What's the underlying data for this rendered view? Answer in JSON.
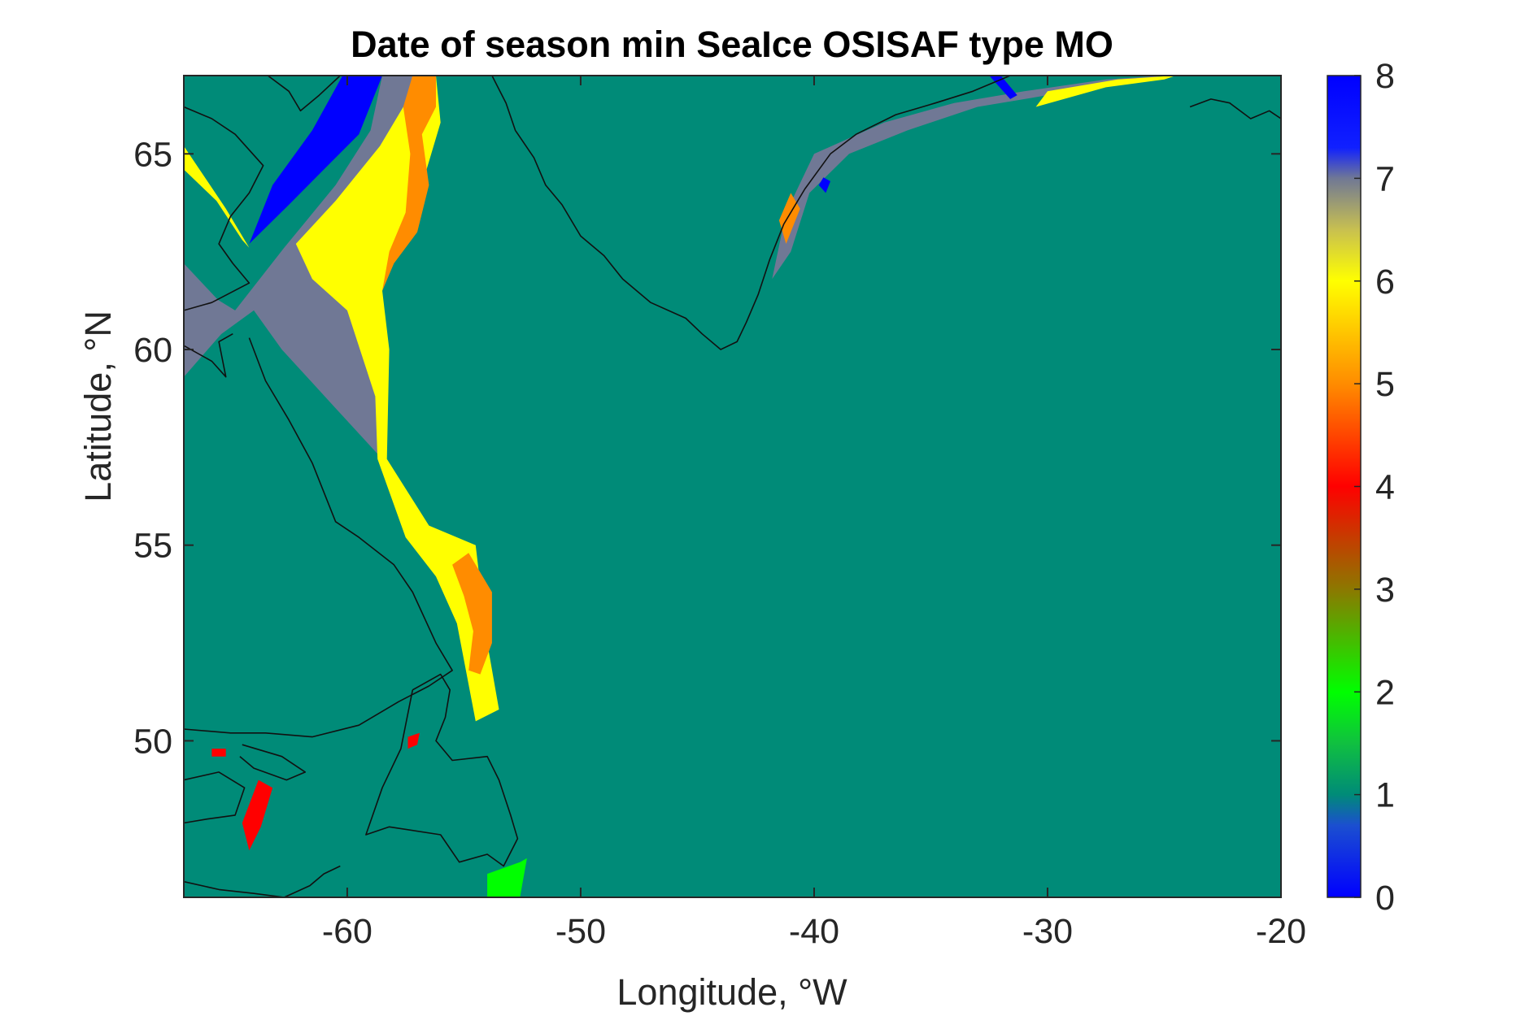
{
  "chart_data": {
    "type": "heatmap",
    "title": "Date of season min SeaIce OSISAF type MO",
    "xlabel": "Longitude, °W",
    "ylabel": "Latitude, °N",
    "xlim": [
      -67,
      -20
    ],
    "ylim": [
      46,
      67
    ],
    "xticks": [
      -60,
      -50,
      -40,
      -30,
      -20
    ],
    "xtick_labels": [
      "-60",
      "-50",
      "-40",
      "-30",
      "-20"
    ],
    "yticks": [
      50,
      55,
      60,
      65
    ],
    "ytick_labels": [
      "50",
      "55",
      "60",
      "65"
    ],
    "colorbar": {
      "min": 0,
      "max": 8,
      "ticks": [
        0,
        1,
        2,
        3,
        4,
        5,
        6,
        7,
        8
      ],
      "tick_labels": [
        "0",
        "1",
        "2",
        "3",
        "4",
        "5",
        "6",
        "7",
        "8"
      ],
      "stops": [
        {
          "value": 0,
          "color": "#0000ff"
        },
        {
          "value": 0.7,
          "color": "#1b4fd0"
        },
        {
          "value": 1.0,
          "color": "#008b78"
        },
        {
          "value": 1.5,
          "color": "#10c040"
        },
        {
          "value": 2.0,
          "color": "#00ff00"
        },
        {
          "value": 3.0,
          "color": "#8c7800"
        },
        {
          "value": 4.0,
          "color": "#ff0000"
        },
        {
          "value": 5.0,
          "color": "#ff8c00"
        },
        {
          "value": 6.0,
          "color": "#ffff00"
        },
        {
          "value": 6.5,
          "color": "#c8c050"
        },
        {
          "value": 7.0,
          "color": "#707895"
        },
        {
          "value": 7.3,
          "color": "#1020ff"
        },
        {
          "value": 8.0,
          "color": "#0000ff"
        }
      ]
    },
    "background_value": 1,
    "regions": [
      {
        "name": "labrador-sea-grey",
        "value": 7,
        "points": [
          [
            -67,
            61.8
          ],
          [
            -64.8,
            61
          ],
          [
            -62.7,
            62.6
          ],
          [
            -60.5,
            64.2
          ],
          [
            -59,
            65.6
          ],
          [
            -58.5,
            67
          ],
          [
            -56.5,
            67
          ],
          [
            -58,
            65
          ],
          [
            -60,
            61.5
          ],
          [
            -58.8,
            58.8
          ],
          [
            -58.5,
            57.2
          ],
          [
            -60.5,
            58.5
          ],
          [
            -62.8,
            60
          ],
          [
            -64,
            61
          ],
          [
            -67,
            59.7
          ]
        ]
      },
      {
        "name": "baffin-bay-blue",
        "value": 8,
        "points": [
          [
            -64.2,
            62.7
          ],
          [
            -63.2,
            64.2
          ],
          [
            -61.5,
            65.6
          ],
          [
            -60.2,
            67
          ],
          [
            -58.5,
            67
          ],
          [
            -59.5,
            65.5
          ],
          [
            -61,
            64.6
          ],
          [
            -62.5,
            63.7
          ]
        ]
      },
      {
        "name": "labrador-shelf-yellow",
        "value": 6,
        "points": [
          [
            -62.2,
            62.7
          ],
          [
            -60.5,
            63.8
          ],
          [
            -58.6,
            65.2
          ],
          [
            -57.5,
            66.3
          ],
          [
            -57.2,
            67
          ],
          [
            -56.2,
            67
          ],
          [
            -56,
            65.8
          ],
          [
            -57,
            63.8
          ],
          [
            -58.5,
            61.5
          ],
          [
            -58.2,
            60
          ],
          [
            -58.3,
            57.2
          ],
          [
            -56.5,
            55.5
          ],
          [
            -54.5,
            55
          ],
          [
            -54,
            52.5
          ],
          [
            -53.5,
            50.8
          ],
          [
            -54.5,
            50.5
          ],
          [
            -55.3,
            53
          ],
          [
            -56.2,
            54.2
          ],
          [
            -57.5,
            55.2
          ],
          [
            -58.7,
            57.2
          ],
          [
            -58.8,
            58.8
          ],
          [
            -60,
            61
          ],
          [
            -61.5,
            61.8
          ]
        ]
      },
      {
        "name": "labrador-shelf-orange-north",
        "value": 5,
        "points": [
          [
            -57.2,
            67
          ],
          [
            -56.2,
            67
          ],
          [
            -56.2,
            66.2
          ],
          [
            -56.8,
            65.5
          ],
          [
            -56.5,
            64.2
          ],
          [
            -57,
            63
          ],
          [
            -58,
            62.2
          ],
          [
            -58.5,
            61.5
          ],
          [
            -58.2,
            62.5
          ],
          [
            -57.5,
            63.5
          ],
          [
            -57.3,
            65
          ],
          [
            -57.6,
            66.2
          ]
        ]
      },
      {
        "name": "labrador-shelf-orange-south",
        "value": 5,
        "points": [
          [
            -54.8,
            54.8
          ],
          [
            -53.8,
            53.8
          ],
          [
            -53.8,
            52.5
          ],
          [
            -54.3,
            51.7
          ],
          [
            -54.8,
            51.8
          ],
          [
            -54.6,
            52.8
          ],
          [
            -55,
            53.7
          ],
          [
            -55.5,
            54.5
          ]
        ]
      },
      {
        "name": "greenland-east-grey",
        "value": 7,
        "points": [
          [
            -41.8,
            61.8
          ],
          [
            -41.2,
            63.5
          ],
          [
            -40,
            65
          ],
          [
            -37,
            65.8
          ],
          [
            -34,
            66.3
          ],
          [
            -31,
            66.6
          ],
          [
            -27.5,
            66.9
          ],
          [
            -25,
            67
          ],
          [
            -29,
            66.6
          ],
          [
            -33,
            66.2
          ],
          [
            -36,
            65.6
          ],
          [
            -38.5,
            65
          ],
          [
            -40.2,
            64
          ],
          [
            -41,
            62.5
          ]
        ]
      },
      {
        "name": "greenland-east-blue-1",
        "value": 8,
        "points": [
          [
            -32.5,
            67
          ],
          [
            -31.6,
            66.4
          ],
          [
            -31.3,
            66.5
          ],
          [
            -32,
            67
          ]
        ]
      },
      {
        "name": "greenland-east-blue-2",
        "value": 8,
        "points": [
          [
            -39.8,
            64.2
          ],
          [
            -39.5,
            64
          ],
          [
            -39.3,
            64.3
          ],
          [
            -39.6,
            64.4
          ]
        ]
      },
      {
        "name": "greenland-east-yellow",
        "value": 6,
        "points": [
          [
            -30.5,
            66.2
          ],
          [
            -27.5,
            66.7
          ],
          [
            -25,
            66.9
          ],
          [
            -24.5,
            67
          ],
          [
            -27,
            66.9
          ],
          [
            -30,
            66.6
          ]
        ]
      },
      {
        "name": "greenland-east-orange",
        "value": 5,
        "points": [
          [
            -41.5,
            63.3
          ],
          [
            -41,
            64
          ],
          [
            -40.6,
            63.6
          ],
          [
            -41.2,
            62.7
          ]
        ]
      },
      {
        "name": "hudson-strait-grey",
        "value": 7,
        "points": [
          [
            -67,
            59.3
          ],
          [
            -64.8,
            60.8
          ],
          [
            -67,
            62.2
          ]
        ]
      },
      {
        "name": "hudson-strait-yellow",
        "value": 6,
        "points": [
          [
            -67,
            64.6
          ],
          [
            -65.6,
            63.8
          ],
          [
            -64.5,
            62.8
          ],
          [
            -64.2,
            62.6
          ],
          [
            -65.2,
            63.6
          ],
          [
            -67,
            65.2
          ]
        ]
      },
      {
        "name": "gulf-stlawrence-red-1",
        "value": 4,
        "points": [
          [
            -63.8,
            49
          ],
          [
            -63.2,
            48.8
          ],
          [
            -63.7,
            47.8
          ],
          [
            -64.2,
            47.2
          ],
          [
            -64.5,
            47.9
          ]
        ]
      },
      {
        "name": "gulf-stlawrence-red-2",
        "value": 4,
        "points": [
          [
            -65.8,
            49.8
          ],
          [
            -65.2,
            49.8
          ],
          [
            -65.2,
            49.6
          ],
          [
            -65.8,
            49.6
          ]
        ]
      },
      {
        "name": "lake-red",
        "value": 4,
        "points": [
          [
            -57.4,
            50.1
          ],
          [
            -56.9,
            50.2
          ],
          [
            -57,
            49.9
          ],
          [
            -57.4,
            49.8
          ]
        ]
      },
      {
        "name": "south-green",
        "value": 2,
        "points": [
          [
            -54,
            46.6
          ],
          [
            -52.6,
            46.9
          ],
          [
            -52.3,
            47
          ],
          [
            -52.6,
            46
          ],
          [
            -54,
            46
          ]
        ]
      }
    ],
    "coastlines": [
      {
        "name": "labrador-coast",
        "points": [
          [
            -64.2,
            60.3
          ],
          [
            -63.5,
            59.2
          ],
          [
            -62.5,
            58.2
          ],
          [
            -61.5,
            57.1
          ],
          [
            -60.5,
            55.6
          ],
          [
            -59.5,
            55.2
          ],
          [
            -58,
            54.5
          ],
          [
            -57.2,
            53.8
          ],
          [
            -56.2,
            52.5
          ],
          [
            -55.5,
            51.8
          ],
          [
            -56.5,
            51.4
          ],
          [
            -57.8,
            51
          ],
          [
            -59.5,
            50.4
          ],
          [
            -61.5,
            50.1
          ],
          [
            -63.5,
            50.2
          ],
          [
            -65,
            50.2
          ],
          [
            -67,
            50.3
          ]
        ]
      },
      {
        "name": "newfoundland-coast",
        "points": [
          [
            -57.2,
            51.3
          ],
          [
            -56,
            51.7
          ],
          [
            -55.6,
            51.3
          ],
          [
            -55.8,
            50.6
          ],
          [
            -56.2,
            50
          ],
          [
            -55.5,
            49.5
          ],
          [
            -54,
            49.6
          ],
          [
            -53.5,
            49
          ],
          [
            -53,
            48.1
          ],
          [
            -52.7,
            47.5
          ],
          [
            -53.3,
            46.8
          ],
          [
            -54,
            47.1
          ],
          [
            -55.2,
            46.9
          ],
          [
            -56,
            47.6
          ],
          [
            -58.2,
            47.8
          ],
          [
            -59.2,
            47.6
          ],
          [
            -58.5,
            48.8
          ],
          [
            -57.7,
            49.8
          ],
          [
            -57.2,
            51.3
          ]
        ]
      },
      {
        "name": "gaspe-coast",
        "points": [
          [
            -67,
            49
          ],
          [
            -65.5,
            49.2
          ],
          [
            -64.4,
            48.8
          ],
          [
            -64.8,
            48.1
          ],
          [
            -66,
            48
          ],
          [
            -67,
            47.9
          ]
        ]
      },
      {
        "name": "anticosti-island",
        "points": [
          [
            -64.5,
            49.9
          ],
          [
            -62.8,
            49.6
          ],
          [
            -61.8,
            49.2
          ],
          [
            -62.6,
            49
          ],
          [
            -64,
            49.3
          ],
          [
            -64.6,
            49.6
          ]
        ]
      },
      {
        "name": "nova-scotia-coast",
        "points": [
          [
            -67,
            46.4
          ],
          [
            -65.5,
            46.2
          ],
          [
            -64,
            46.1
          ],
          [
            -62.7,
            46
          ],
          [
            -61.6,
            46.3
          ],
          [
            -61,
            46.6
          ],
          [
            -60.3,
            46.8
          ]
        ]
      },
      {
        "name": "greenland-coast",
        "points": [
          [
            -53.8,
            67
          ],
          [
            -53.2,
            66.3
          ],
          [
            -52.8,
            65.6
          ],
          [
            -52,
            64.9
          ],
          [
            -51.5,
            64.2
          ],
          [
            -50.8,
            63.7
          ],
          [
            -50,
            62.9
          ],
          [
            -49,
            62.4
          ],
          [
            -48.2,
            61.8
          ],
          [
            -47,
            61.2
          ],
          [
            -45.5,
            60.8
          ],
          [
            -44.8,
            60.4
          ],
          [
            -44,
            60
          ],
          [
            -43.3,
            60.2
          ],
          [
            -42.9,
            60.7
          ],
          [
            -42.4,
            61.4
          ],
          [
            -41.9,
            62.3
          ],
          [
            -41.3,
            63.2
          ],
          [
            -40.4,
            64.1
          ],
          [
            -39.3,
            65
          ],
          [
            -38.2,
            65.5
          ],
          [
            -36.5,
            66
          ],
          [
            -34.8,
            66.3
          ],
          [
            -33.2,
            66.6
          ],
          [
            -31.6,
            67
          ]
        ]
      },
      {
        "name": "baffin-coast",
        "points": [
          [
            -67,
            66.2
          ],
          [
            -65.8,
            65.9
          ],
          [
            -64.8,
            65.5
          ],
          [
            -63.6,
            64.7
          ],
          [
            -64.2,
            64
          ],
          [
            -65,
            63.4
          ],
          [
            -65.5,
            62.7
          ],
          [
            -64.9,
            62.2
          ],
          [
            -64.2,
            61.7
          ],
          [
            -65.8,
            61.2
          ],
          [
            -67,
            61
          ]
        ]
      },
      {
        "name": "baffin-north-coast",
        "points": [
          [
            -60.3,
            67
          ],
          [
            -61.2,
            66.5
          ],
          [
            -62,
            66.1
          ],
          [
            -62.5,
            66.6
          ],
          [
            -63.4,
            67
          ]
        ]
      },
      {
        "name": "quebec-coast",
        "points": [
          [
            -67,
            60.1
          ],
          [
            -65.8,
            59.7
          ],
          [
            -65.2,
            59.3
          ],
          [
            -65.5,
            60.2
          ],
          [
            -64.9,
            60.4
          ]
        ]
      },
      {
        "name": "iceland-coast",
        "points": [
          [
            -23.9,
            66.2
          ],
          [
            -23,
            66.4
          ],
          [
            -22.2,
            66.3
          ],
          [
            -21.3,
            65.9
          ],
          [
            -20.5,
            66.1
          ],
          [
            -20,
            65.9
          ]
        ]
      }
    ]
  }
}
